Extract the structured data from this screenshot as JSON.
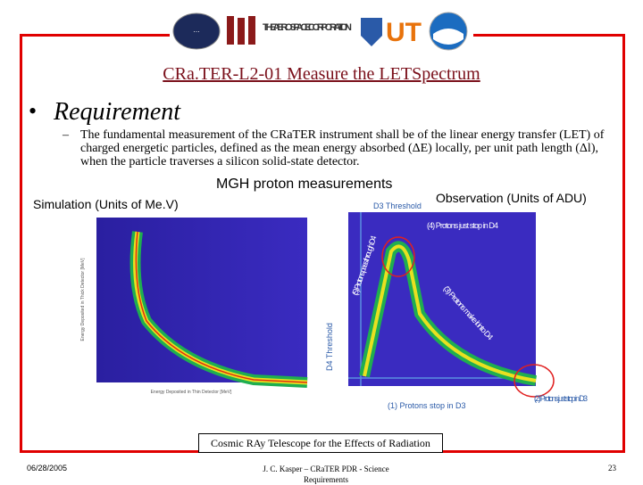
{
  "logos": {
    "aerospace": "THE AEROSPACE CORPORATION",
    "ut": "UT"
  },
  "header": {
    "title": "CRa.TER-L2-01 Measure the LETSpectrum"
  },
  "section": {
    "bullet": "•",
    "heading": "Requirement"
  },
  "requirement": {
    "dash": "–",
    "text": "The fundamental measurement of the CRaTER instrument shall be of the linear energy transfer (LET) of charged energetic particles, defined as the mean energy absorbed (ΔE) locally, per unit path length (Δl), when the particle traverses a silicon solid-state detector."
  },
  "figure": {
    "title": "MGH proton measurements",
    "left_caption": "Simulation (Units of Me.V)",
    "right_caption": "Observation (Units of ADU)",
    "left_plot": {
      "y_label": "Energy Deposited in Thick Detector [MeV]",
      "x_label": "Energy Deposited in Thin Detector [MeV]"
    },
    "right_plot": {
      "annotations": [
        "D3 Threshold",
        "(4) Protons just stop in D4",
        "(5) Protons pass through D4",
        "(3) Protons make it into D4",
        "D4 Threshold",
        "(2) Protons just stop in D3",
        "(1) Protons stop in D3"
      ]
    }
  },
  "footer": {
    "banner": "Cosmic RAy Telescope for the Effects of Radiation",
    "date": "06/28/2005",
    "author": "J. C. Kasper – CRaTER PDR - Science Requirements",
    "page": "23"
  }
}
